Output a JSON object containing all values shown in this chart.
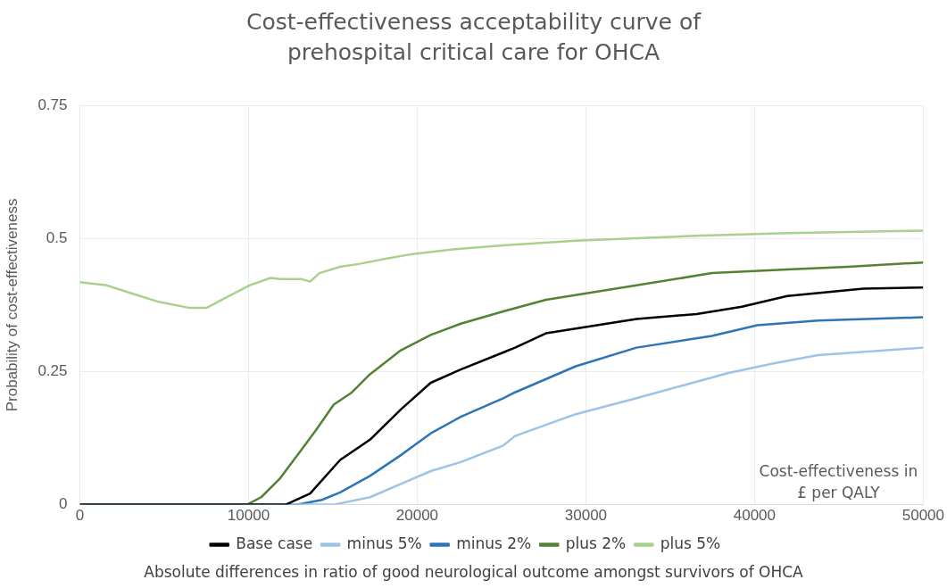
{
  "chart_data": {
    "type": "line",
    "title": "Cost-effectiveness acceptability curve of prehospital critical care for OHCA",
    "xlabel": "Cost-effectiveness in £ per QALY",
    "ylabel": "Probability of cost-effectiveness",
    "legend_title": "Absolute differences in ratio of good neurological outcome amongst survivors of OHCA",
    "xlim": [
      0,
      50000
    ],
    "xticks": [
      0,
      10000,
      20000,
      30000,
      40000,
      50000
    ],
    "ylim": [
      0,
      0.75
    ],
    "yticks": [
      0,
      0.25,
      0.5,
      0.75
    ],
    "grid": true,
    "legend": "bottom",
    "marker": "none",
    "line_style": "solid",
    "series": [
      {
        "name": "Base case",
        "color": "#000000",
        "x": [
          0,
          12200,
          13650,
          15430,
          17200,
          19030,
          20800,
          22580,
          25100,
          25800,
          27630,
          29400,
          33000,
          36560,
          39250,
          41940,
          46450,
          50000
        ],
        "values": [
          0,
          0,
          0.021,
          0.084,
          0.122,
          0.179,
          0.229,
          0.254,
          0.286,
          0.295,
          0.322,
          0.331,
          0.349,
          0.358,
          0.372,
          0.392,
          0.406,
          0.408
        ]
      },
      {
        "name": "minus 5%",
        "color": "#9dc3e6",
        "x": [
          0,
          15050,
          17200,
          19030,
          20800,
          22580,
          25100,
          25800,
          29400,
          33000,
          38400,
          41070,
          43760,
          50000
        ],
        "values": [
          0,
          0,
          0.014,
          0.039,
          0.063,
          0.08,
          0.111,
          0.129,
          0.17,
          0.2,
          0.247,
          0.265,
          0.281,
          0.295
        ]
      },
      {
        "name": "minus 2%",
        "color": "#2e75b6",
        "x": [
          0,
          12900,
          14350,
          15430,
          17200,
          19030,
          20800,
          22580,
          25100,
          25800,
          29400,
          33000,
          37470,
          40160,
          43760,
          50000
        ],
        "values": [
          0,
          0,
          0.009,
          0.023,
          0.054,
          0.093,
          0.134,
          0.165,
          0.2,
          0.211,
          0.26,
          0.295,
          0.317,
          0.337,
          0.346,
          0.352
        ]
      },
      {
        "name": "plus 2%",
        "color": "#548235",
        "x": [
          0,
          9900,
          10750,
          11830,
          12900,
          14000,
          15050,
          16130,
          17200,
          19030,
          20800,
          22580,
          25100,
          27630,
          33000,
          37470,
          41940,
          45540,
          50000
        ],
        "values": [
          0,
          0,
          0.014,
          0.048,
          0.093,
          0.14,
          0.188,
          0.211,
          0.245,
          0.29,
          0.319,
          0.34,
          0.363,
          0.385,
          0.412,
          0.435,
          0.442,
          0.447,
          0.455
        ]
      },
      {
        "name": "plus 5%",
        "color": "#a9d18e",
        "x": [
          0,
          1600,
          3060,
          4680,
          6450,
          7530,
          8600,
          10050,
          11300,
          11900,
          13100,
          13650,
          14200,
          15430,
          16670,
          18120,
          19730,
          22580,
          25100,
          29400,
          36560,
          41940,
          50000
        ],
        "values": [
          0.418,
          0.412,
          0.397,
          0.381,
          0.37,
          0.37,
          0.388,
          0.412,
          0.426,
          0.424,
          0.424,
          0.419,
          0.435,
          0.447,
          0.453,
          0.462,
          0.471,
          0.481,
          0.487,
          0.496,
          0.505,
          0.51,
          0.515
        ]
      }
    ]
  }
}
